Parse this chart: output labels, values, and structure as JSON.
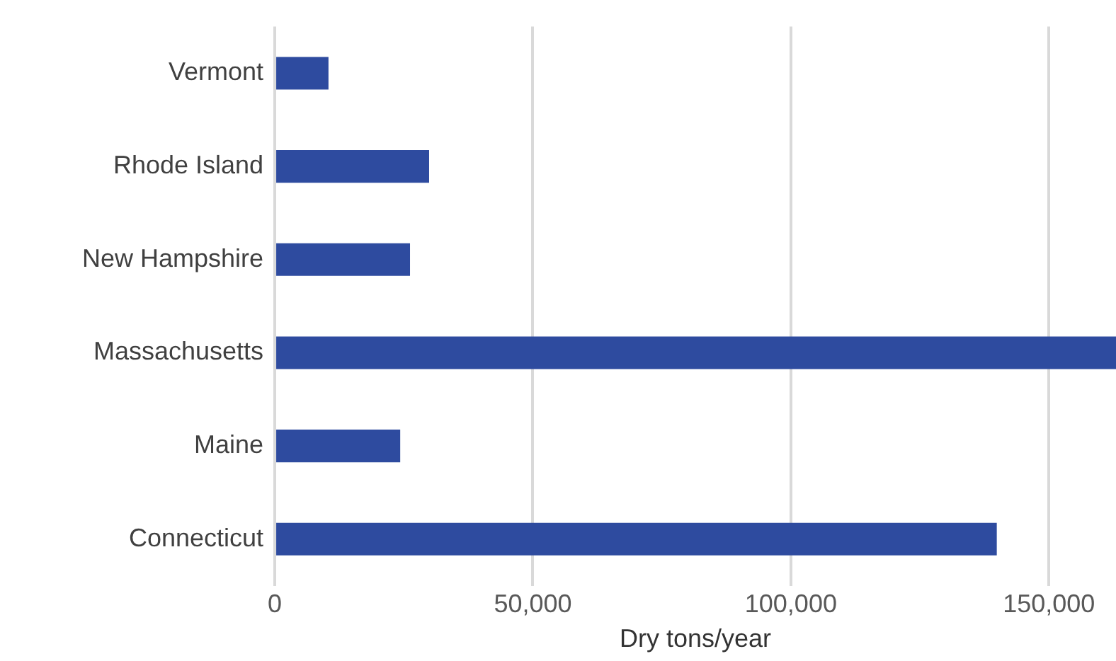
{
  "chart_data": {
    "type": "bar",
    "orientation": "horizontal",
    "xlabel": "Dry tons/year",
    "categories": [
      "Vermont",
      "Rhode Island",
      "New Hampshire",
      "Massachusetts",
      "Maine",
      "Connecticut"
    ],
    "values": [
      10400,
      29900,
      26200,
      163000,
      24300,
      139900
    ],
    "color": "#2e4b9f",
    "xlim": [
      0,
      163000
    ],
    "xticks": [
      {
        "value": 0,
        "label": "0"
      },
      {
        "value": 50000,
        "label": "50,000"
      },
      {
        "value": 100000,
        "label": "100,000"
      },
      {
        "value": 150000,
        "label": "150,000"
      }
    ],
    "grid": "x",
    "legend": false
  }
}
